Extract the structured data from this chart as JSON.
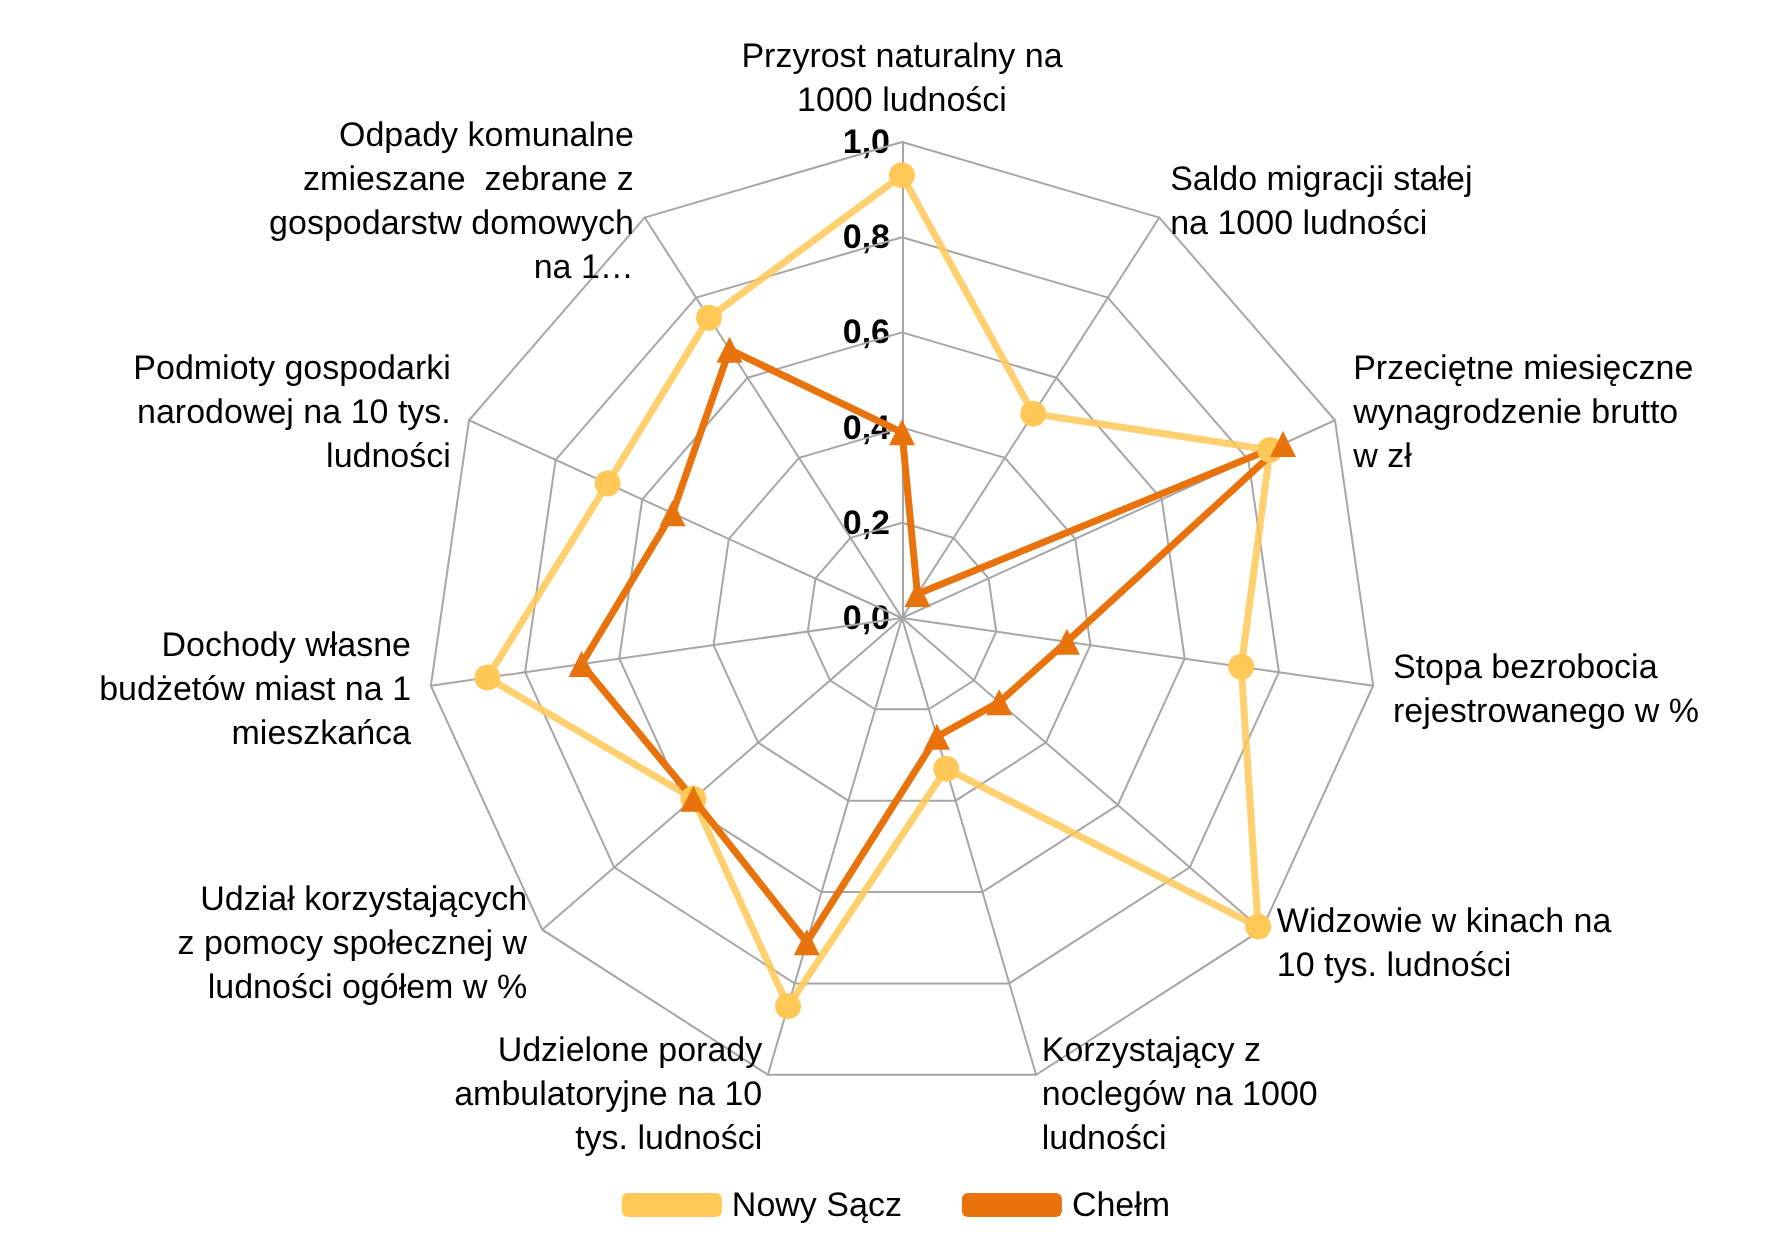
{
  "chart_data": {
    "type": "radar",
    "categories": [
      "Przyrost naturalny na 1000 ludności",
      "Saldo migracji stałej na 1000 ludności",
      "Przeciętne miesięczne wynagrodzenie brutto w zł",
      "Stopa bezrobocia rejestrowanego w %",
      "Widzowie w kinach na 10 tys. ludności",
      "Korzystający z noclegów na 1000 ludności",
      "Udzielone porady ambulatoryjne na 10 tys. ludności",
      "Udział korzystających z pomocy społecznej w ludności ogółem w %",
      "Dochody własne budżetów miast na 1 mieszkańca",
      "Podmioty gospodarki narodowej na 10 tys. ludności",
      "Odpady komunalne zmieszane  zebrane z gospodarstw domowych na 1…"
    ],
    "series": [
      {
        "name": "Nowy Sącz",
        "color": "#ffc857",
        "marker": "circle",
        "values": [
          0.93,
          0.51,
          0.85,
          0.72,
          0.99,
          0.33,
          0.85,
          0.58,
          0.88,
          0.68,
          0.75
        ]
      },
      {
        "name": "Chełm",
        "color": "#e8720c",
        "marker": "triangle",
        "values": [
          0.39,
          0.06,
          0.88,
          0.35,
          0.27,
          0.26,
          0.71,
          0.58,
          0.68,
          0.53,
          0.67
        ]
      }
    ],
    "ylim": [
      0,
      1
    ],
    "yticks": [
      {
        "value": 0,
        "label": "0,0"
      },
      {
        "value": 0.2,
        "label": "0,2"
      },
      {
        "value": 0.4,
        "label": "0,4"
      },
      {
        "value": 0.6,
        "label": "0,6"
      },
      {
        "value": 0.8,
        "label": "0,8"
      },
      {
        "value": 1,
        "label": "1,0"
      }
    ],
    "legend": "bottom",
    "line_style": "solid"
  }
}
